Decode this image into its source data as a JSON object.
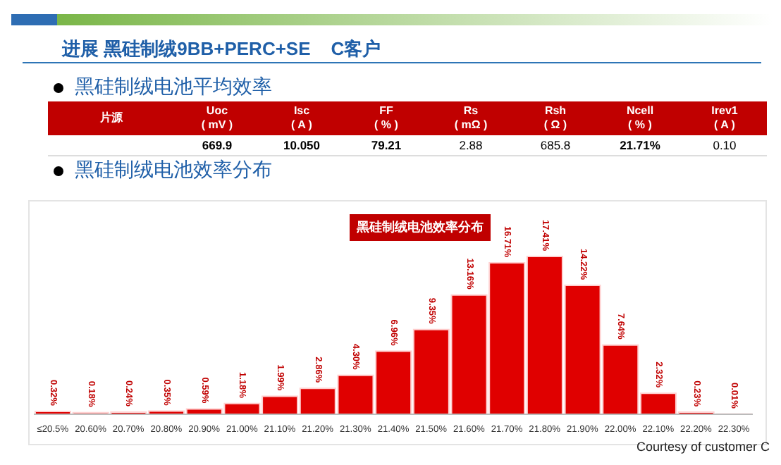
{
  "chart_data": [
    {
      "type": "other",
      "title": "进展 黑硅制绒9BB+PERC+SE    C客户",
      "subtitle": "黑硅制绒电池平均效率",
      "categories": [
        "片源",
        "Uoc\n( mV )",
        "Isc\n( A )",
        "FF\n( % )",
        "Rs\n( mΩ )",
        "Rsh\n( Ω )",
        "Ncell\n( % )",
        "Irev1\n( A )"
      ],
      "value_labels": [
        null,
        "669.9",
        "10.050",
        "79.21",
        "2.88",
        "685.8",
        "21.71%",
        "0.10"
      ]
    },
    {
      "type": "bar",
      "title": "黑硅制绒电池效率分布",
      "subtitle": "黑硅制绒电池效率分布",
      "categories": [
        "≤20.5%",
        "20.60%",
        "20.70%",
        "20.80%",
        "20.90%",
        "21.00%",
        "21.10%",
        "21.20%",
        "21.30%",
        "21.40%",
        "21.50%",
        "21.60%",
        "21.70%",
        "21.80%",
        "21.90%",
        "22.00%",
        "22.10%",
        "22.20%",
        "22.30%"
      ],
      "values": [
        0.32,
        0.18,
        0.24,
        0.35,
        0.59,
        1.18,
        1.99,
        2.86,
        4.3,
        6.96,
        9.35,
        13.16,
        16.71,
        17.41,
        14.22,
        7.64,
        2.32,
        0.23,
        0.01
      ],
      "value_labels": [
        "0.32%",
        "0.18%",
        "0.24%",
        "0.35%",
        "0.59%",
        "1.18%",
        "1.99%",
        "2.86%",
        "4.30%",
        "6.96%",
        "9.35%",
        "13.16%",
        "16.71%",
        "17.41%",
        "14.22%",
        "7.64%",
        "2.32%",
        "0.23%",
        "0.01%"
      ],
      "color": "#e00000",
      "annotations": [
        "Courtesy of customer C"
      ]
    }
  ]
}
